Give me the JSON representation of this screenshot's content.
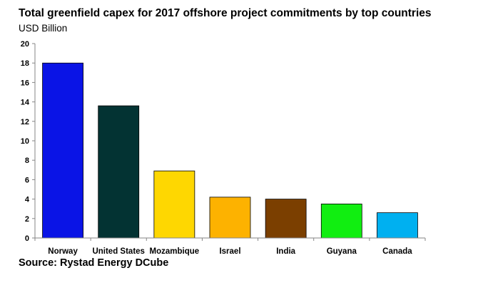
{
  "header": {
    "title": "Total greenfield capex for 2017 offshore project commitments by top countries",
    "unit": "USD Billion"
  },
  "footer": {
    "source": "Source: Rystad Energy DCube"
  },
  "chart_data": {
    "type": "bar",
    "title": "Total greenfield capex for 2017 offshore project commitments by top countries",
    "ylabel": "USD Billion",
    "xlabel": "",
    "ylim": [
      0,
      20
    ],
    "yticks": [
      0,
      2,
      4,
      6,
      8,
      10,
      12,
      14,
      16,
      18,
      20
    ],
    "grid": false,
    "legend": "none",
    "categories": [
      "Norway",
      "United States",
      "Mozambique",
      "Israel",
      "India",
      "Guyana",
      "Canada"
    ],
    "values": [
      18.0,
      13.6,
      6.9,
      4.2,
      4.0,
      3.5,
      2.6
    ],
    "colors": [
      "#0a14e6",
      "#033333",
      "#fed701",
      "#fdb200",
      "#7b3f00",
      "#11ee11",
      "#00b0f0"
    ]
  }
}
